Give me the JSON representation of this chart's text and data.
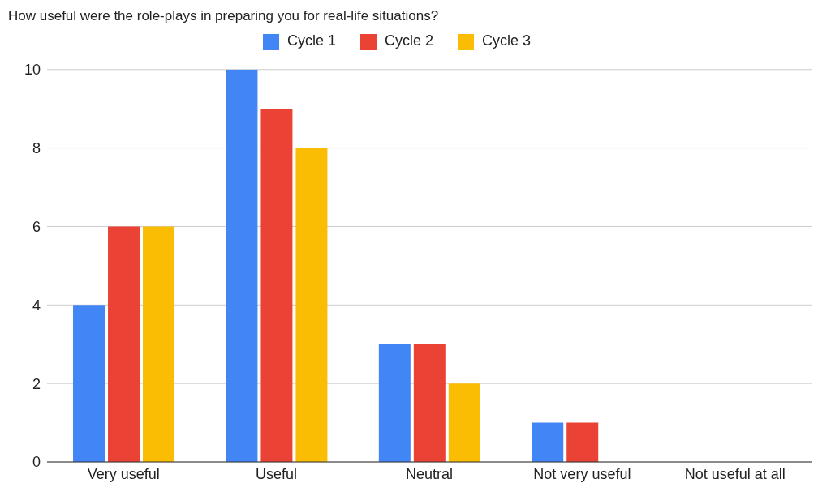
{
  "chart_data": {
    "type": "bar",
    "title": "How useful were the role-plays in preparing you for real-life situations?",
    "categories": [
      "Very useful",
      "Useful",
      "Neutral",
      "Not very useful",
      "Not useful at all"
    ],
    "series": [
      {
        "name": "Cycle 1",
        "color": "#4285f4",
        "values": [
          4,
          10,
          3,
          1,
          0
        ]
      },
      {
        "name": "Cycle 2",
        "color": "#ea4335",
        "values": [
          6,
          9,
          3,
          1,
          0
        ]
      },
      {
        "name": "Cycle 3",
        "color": "#fbbc04",
        "values": [
          6,
          8,
          2,
          0,
          0
        ]
      }
    ],
    "ylim": [
      0,
      10
    ],
    "yticks": [
      0,
      2,
      4,
      6,
      8,
      10
    ],
    "grid": "y",
    "legend": "top"
  }
}
